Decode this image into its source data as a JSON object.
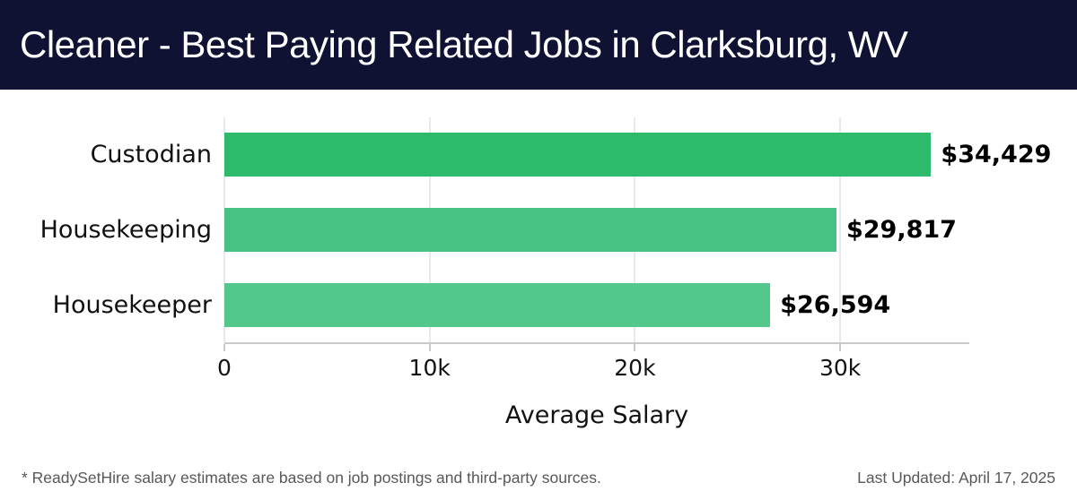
{
  "header": {
    "title": "Cleaner - Best Paying Related Jobs in Clarksburg, WV",
    "bg_color": "#101234"
  },
  "chart_data": {
    "type": "bar",
    "orientation": "horizontal",
    "title": "Cleaner - Best Paying Related Jobs in Clarksburg, WV",
    "categories": [
      "Custodian",
      "Housekeeping",
      "Housekeeper"
    ],
    "values": [
      34429,
      29817,
      26594
    ],
    "value_labels": [
      "$34,429",
      "$29,817",
      "$26,594"
    ],
    "bar_colors": [
      "#2eba6b",
      "#47c283",
      "#54c78c"
    ],
    "xlabel": "Average Salary",
    "ylabel": "",
    "xlim": [
      0,
      36290
    ],
    "xticks": [
      0,
      10000,
      20000,
      30000
    ],
    "xtick_labels": [
      "0",
      "10k",
      "20k",
      "30k"
    ],
    "grid": true,
    "legend": false
  },
  "footer": {
    "note": "* ReadySetHire salary estimates are based on job postings and third-party sources.",
    "last_updated": "Last Updated: April 17, 2025"
  }
}
